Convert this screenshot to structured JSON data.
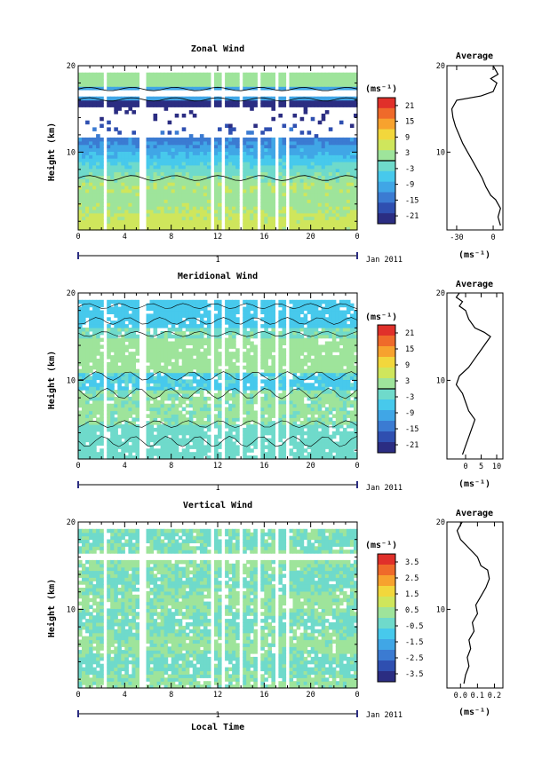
{
  "figure": {
    "x_axis_label": "Local Time",
    "date_label": "Jan 2011",
    "day_marker": "1",
    "colors": {
      "map": [
        "#2b2d82",
        "#2f4fb0",
        "#3b7bd2",
        "#40a6e6",
        "#47c9ec",
        "#6fdacb",
        "#9ee49b",
        "#cfe65c",
        "#f2d73c",
        "#f7a22e",
        "#ef6a2a",
        "#e0302a"
      ]
    }
  },
  "chart_data": [
    {
      "type": "heatmap",
      "name": "zonal",
      "title": "Zonal Wind",
      "ylabel": "Height (km)",
      "x_ticks": [
        "0",
        "4",
        "8",
        "12",
        "16",
        "20",
        "0"
      ],
      "xlim": [
        0,
        24
      ],
      "ylim": [
        1,
        20
      ],
      "y_ticks": [
        "10",
        "20"
      ],
      "colorbar": {
        "unit": "(ms⁻¹)",
        "ticks": [
          "21",
          "15",
          "9",
          "3",
          "-3",
          "-9",
          "-15",
          "-21"
        ],
        "range": [
          -24,
          24
        ],
        "marker": 0
      },
      "average": {
        "title": "Average",
        "xlabel": "(ms⁻¹)",
        "x_ticks": [
          "-30",
          "0"
        ],
        "xlim": [
          -38,
          8
        ],
        "y_ticks": [
          "10",
          "20"
        ],
        "profile": [
          [
            1.5,
            6
          ],
          [
            2.5,
            4
          ],
          [
            3.5,
            6
          ],
          [
            4.5,
            2
          ],
          [
            5,
            -2
          ],
          [
            6,
            -6
          ],
          [
            7,
            -9
          ],
          [
            8,
            -13
          ],
          [
            9,
            -17
          ],
          [
            10,
            -21
          ],
          [
            11,
            -25
          ],
          [
            12,
            -28
          ],
          [
            13,
            -31
          ],
          [
            14,
            -33
          ],
          [
            15,
            -34
          ],
          [
            16,
            -30
          ],
          [
            16.5,
            -10
          ],
          [
            17,
            0
          ],
          [
            18,
            3
          ],
          [
            18.5,
            -2
          ],
          [
            19,
            4
          ],
          [
            19.5,
            2
          ],
          [
            20,
            0
          ]
        ]
      }
    },
    {
      "type": "heatmap",
      "name": "meridional",
      "title": "Meridional Wind",
      "ylabel": "Height (km)",
      "x_ticks": [
        "0",
        "4",
        "8",
        "12",
        "16",
        "20",
        "0"
      ],
      "xlim": [
        0,
        24
      ],
      "ylim": [
        1,
        20
      ],
      "y_ticks": [
        "10",
        "20"
      ],
      "colorbar": {
        "unit": "(ms⁻¹)",
        "ticks": [
          "21",
          "15",
          "9",
          "3",
          "-3",
          "-9",
          "-15",
          "-21"
        ],
        "range": [
          -24,
          24
        ],
        "marker": 0
      },
      "average": {
        "title": "Average",
        "xlabel": "(ms⁻¹)",
        "x_ticks": [
          "0",
          "5",
          "10"
        ],
        "xlim": [
          -6,
          12
        ],
        "y_ticks": [
          "10",
          "20"
        ],
        "profile": [
          [
            1.5,
            -1
          ],
          [
            2.5,
            0
          ],
          [
            3.5,
            1
          ],
          [
            4.5,
            2
          ],
          [
            5.5,
            3
          ],
          [
            6.5,
            1
          ],
          [
            7.5,
            0
          ],
          [
            8.5,
            -1
          ],
          [
            9.5,
            -3
          ],
          [
            10.5,
            -2
          ],
          [
            11.5,
            1
          ],
          [
            12.5,
            3
          ],
          [
            13.5,
            5
          ],
          [
            14.5,
            7
          ],
          [
            15,
            8
          ],
          [
            15.5,
            6
          ],
          [
            16,
            3
          ],
          [
            17,
            1
          ],
          [
            18,
            0
          ],
          [
            18.5,
            -2
          ],
          [
            19,
            -1
          ],
          [
            19.5,
            -3
          ],
          [
            20,
            -2
          ]
        ]
      }
    },
    {
      "type": "heatmap",
      "name": "vertical",
      "title": "Vertical Wind",
      "ylabel": "Height (km)",
      "x_ticks": [
        "0",
        "4",
        "8",
        "12",
        "16",
        "20",
        "0"
      ],
      "xlim": [
        0,
        24
      ],
      "ylim": [
        1,
        20
      ],
      "y_ticks": [
        "10",
        "20"
      ],
      "colorbar": {
        "unit": "(ms⁻¹)",
        "ticks": [
          "3.5",
          "2.5",
          "1.5",
          "0.5",
          "-0.5",
          "-1.5",
          "-2.5",
          "-3.5"
        ],
        "range": [
          -4,
          4
        ],
        "marker": null
      },
      "average": {
        "title": "Average",
        "xlabel": "(ms⁻¹)",
        "x_ticks": [
          "0.0",
          "0.1",
          "0.2"
        ],
        "xlim": [
          -0.08,
          0.25
        ],
        "y_ticks": [
          "10",
          "20"
        ],
        "profile": [
          [
            1.5,
            0.02
          ],
          [
            2.5,
            0.03
          ],
          [
            3.5,
            0.05
          ],
          [
            4.5,
            0.04
          ],
          [
            5.5,
            0.06
          ],
          [
            6.5,
            0.05
          ],
          [
            7.5,
            0.08
          ],
          [
            8.5,
            0.07
          ],
          [
            9.5,
            0.1
          ],
          [
            10.5,
            0.09
          ],
          [
            11.5,
            0.12
          ],
          [
            12.5,
            0.15
          ],
          [
            13.5,
            0.17
          ],
          [
            14.5,
            0.16
          ],
          [
            15,
            0.12
          ],
          [
            16,
            0.1
          ],
          [
            17,
            0.05
          ],
          [
            18,
            0.0
          ],
          [
            19,
            -0.02
          ],
          [
            20,
            0.01
          ]
        ]
      }
    }
  ]
}
